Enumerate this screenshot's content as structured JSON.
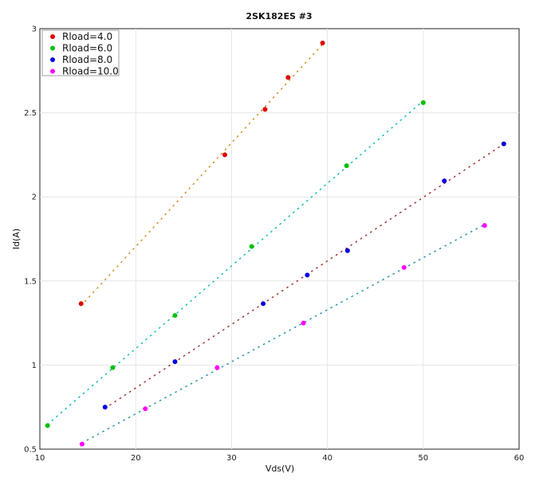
{
  "chart_data": {
    "type": "scatter",
    "title": "2SK182ES #3",
    "xlabel": "Vds(V)",
    "ylabel": "Id(A)",
    "xlim": [
      10,
      60
    ],
    "ylim": [
      0.5,
      3
    ],
    "xticks": [
      10,
      20,
      30,
      40,
      50,
      60
    ],
    "yticks": [
      0.5,
      1,
      1.5,
      2,
      2.5,
      3
    ],
    "xtick_labels": [
      "10",
      "20",
      "30",
      "40",
      "50",
      "60"
    ],
    "ytick_labels": [
      "0.5",
      "1",
      "1.5",
      "2",
      "2.5",
      "3"
    ],
    "grid": true,
    "legend_position": "top-left",
    "series": [
      {
        "name": "Rload=4.0",
        "color": "#e00000",
        "line_color": "#d0881e",
        "x": [
          14.3,
          29.3,
          33.5,
          35.9,
          39.5
        ],
        "y": [
          1.365,
          2.25,
          2.52,
          2.71,
          2.915
        ]
      },
      {
        "name": "Rload=6.0",
        "color": "#00c000",
        "line_color": "#00b8b8",
        "x": [
          10.8,
          17.6,
          24.1,
          32.1,
          42.0,
          50.0
        ],
        "y": [
          0.64,
          0.985,
          1.295,
          1.705,
          2.185,
          2.56
        ]
      },
      {
        "name": "Rload=8.0",
        "color": "#0000e0",
        "line_color": "#9a2a2a",
        "x": [
          16.8,
          24.1,
          33.3,
          37.9,
          42.1,
          52.2,
          58.4
        ],
        "y": [
          0.75,
          1.02,
          1.365,
          1.535,
          1.68,
          2.095,
          2.315
        ]
      },
      {
        "name": "Rload=10.0",
        "color": "#ff00ff",
        "line_color": "#1e8ea0",
        "x": [
          14.4,
          21.0,
          28.5,
          37.5,
          48.0,
          56.4
        ],
        "y": [
          0.53,
          0.74,
          0.985,
          1.25,
          1.58,
          1.83
        ]
      }
    ]
  }
}
